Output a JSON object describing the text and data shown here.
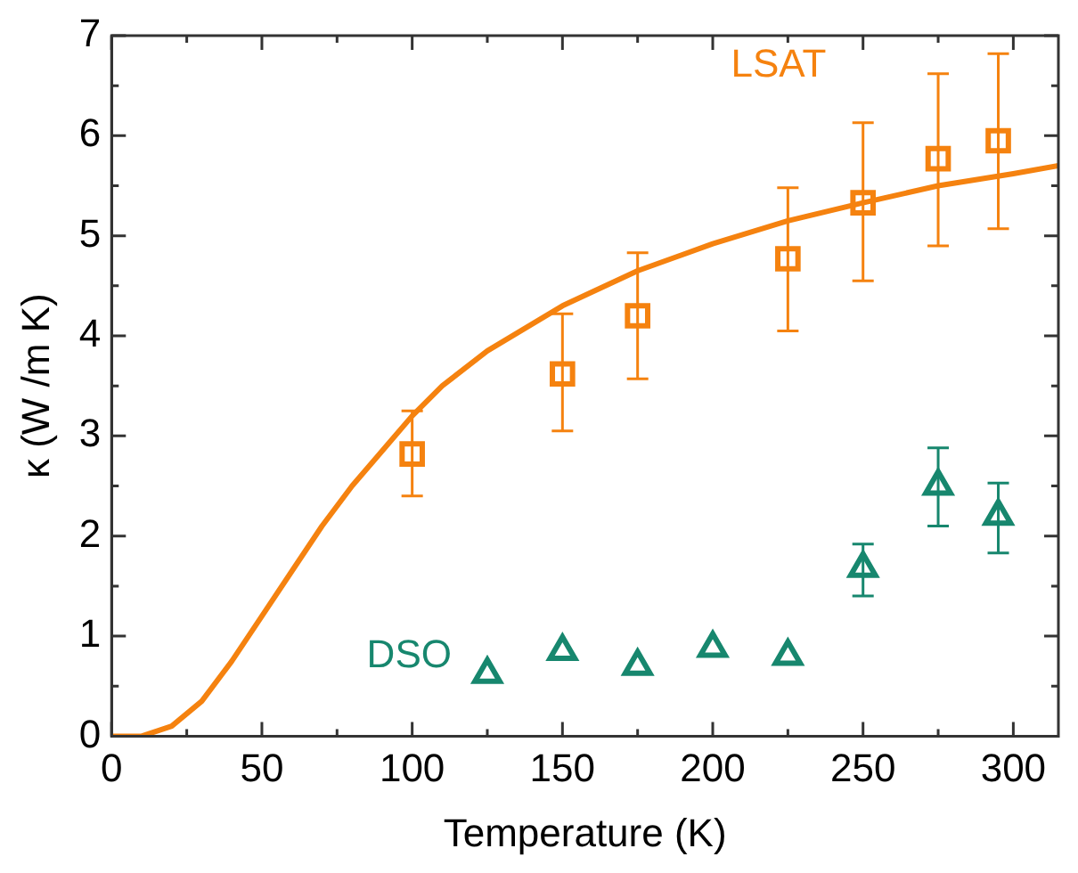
{
  "chart_data": {
    "type": "scatter",
    "xlabel": "Temperature (K)",
    "ylabel": "κ (W /m K)",
    "xlim": [
      0,
      315
    ],
    "ylim": [
      0,
      7
    ],
    "xticks": [
      0,
      {
        "value": 25,
        "label": null
      },
      50,
      {
        "value": 75,
        "label": null
      },
      100,
      {
        "value": 125,
        "label": null
      },
      150,
      {
        "value": 175,
        "label": null
      },
      200,
      {
        "value": 225,
        "label": null
      },
      250,
      {
        "value": 275,
        "label": null
      },
      300
    ],
    "yticks": [
      0,
      {
        "value": 0.5,
        "label": null
      },
      1,
      {
        "value": 1.5,
        "label": null
      },
      2,
      {
        "value": 2.5,
        "label": null
      },
      3,
      {
        "value": 3.5,
        "label": null
      },
      4,
      {
        "value": 4.5,
        "label": null
      },
      5,
      {
        "value": 5.5,
        "label": null
      },
      6,
      {
        "value": 6.5,
        "label": null
      },
      7
    ],
    "grid": false,
    "legend": false,
    "series": [
      {
        "name": "LSAT",
        "color": "#f5820f",
        "marker": "square",
        "x": [
          100,
          150,
          175,
          225,
          250,
          275,
          295
        ],
        "values": [
          2.82,
          3.62,
          4.2,
          4.77,
          5.33,
          5.77,
          5.95
        ],
        "errors": [
          [
            2.4,
            3.25
          ],
          [
            3.05,
            4.22
          ],
          [
            3.57,
            4.83
          ],
          [
            4.05,
            5.48
          ],
          [
            4.55,
            6.13
          ],
          [
            4.9,
            6.62
          ],
          [
            5.07,
            6.82
          ]
        ]
      },
      {
        "name": "DSO",
        "color": "#17876e",
        "marker": "triangle",
        "x": [
          125,
          150,
          175,
          200,
          225,
          250,
          275,
          295
        ],
        "values": [
          0.62,
          0.85,
          0.7,
          0.88,
          0.8,
          1.68,
          2.5,
          2.2
        ],
        "errors": [
          null,
          null,
          null,
          null,
          null,
          [
            1.4,
            1.92
          ],
          [
            2.1,
            2.88
          ],
          [
            1.83,
            2.53
          ]
        ]
      },
      {
        "type": "line",
        "color": "#f5820f",
        "marker": "none",
        "x": [
          0,
          10,
          20,
          30,
          40,
          50,
          60,
          70,
          80,
          90,
          100,
          110,
          125,
          150,
          175,
          200,
          225,
          250,
          275,
          300,
          315
        ],
        "values": [
          0,
          0,
          0.1,
          0.35,
          0.75,
          1.2,
          1.65,
          2.1,
          2.5,
          2.85,
          3.2,
          3.5,
          3.85,
          4.3,
          4.65,
          4.92,
          5.15,
          5.33,
          5.5,
          5.62,
          5.7
        ]
      }
    ]
  }
}
